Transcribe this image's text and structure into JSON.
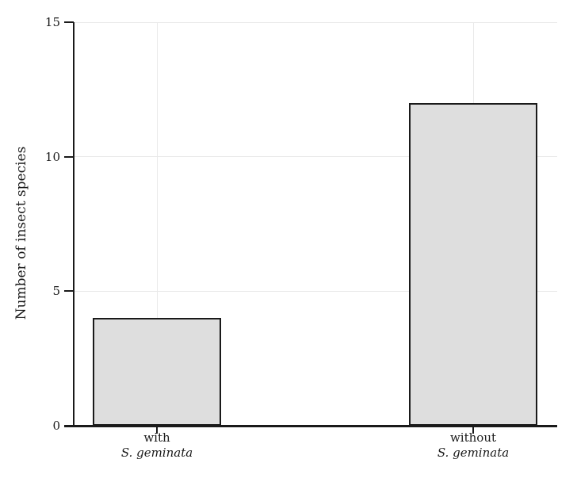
{
  "chart_data": {
    "type": "bar",
    "title": "",
    "xlabel": "",
    "ylabel": "Number of insect species",
    "categories": [
      {
        "line1": "with",
        "line2": "S. geminata"
      },
      {
        "line1": "without",
        "line2": "S. geminata"
      }
    ],
    "values": [
      4,
      12
    ],
    "yticks": [
      0,
      5,
      10,
      15
    ],
    "ylim": [
      0,
      15
    ],
    "grid": true,
    "legend": false,
    "colors": {
      "bar_fill": "#dedede",
      "bar_border": "#1a1a1a",
      "grid": "#e9e9e9",
      "axis": "#1a1a1a",
      "text": "#1a1a1a",
      "background": "#ffffff"
    }
  }
}
